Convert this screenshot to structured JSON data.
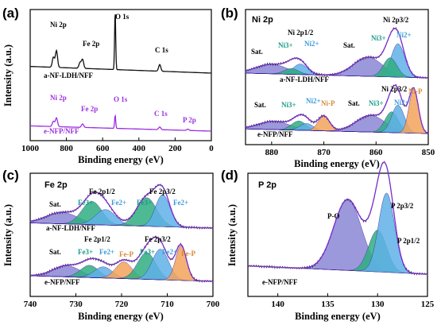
{
  "colors": {
    "black": "#111111",
    "purple": "#9b2fe0",
    "envelope": "#3c1e96",
    "Ni3_fill": "#8a86d6",
    "Ni2_fill": "#5fb0e8",
    "NiP_fill": "#f3a35a",
    "sat_fill": "#8a86d6",
    "green_fill": "#2fae80",
    "Ni3_text": "#1a9a8a",
    "Ni2_text": "#3a9ad8",
    "NiP_text": "#d88a3a",
    "Fe3_text": "#1a9a8a",
    "Fe2_text": "#3a9ad8",
    "FeP_text": "#d88a3a",
    "label_purple": "#7a2fd0"
  },
  "chart_data": [
    {
      "panel": "(a)",
      "type": "line",
      "xlabel": "Binding energy (eV)",
      "ylabel": "Intensity (a.u.)",
      "xlim": [
        1000,
        0
      ],
      "xticks": [
        1000,
        800,
        600,
        400,
        200,
        0
      ],
      "series": [
        {
          "name": "a-NF-LDH/NFF",
          "color": "black",
          "offset": 1.0,
          "peaks": [
            {
              "x": 855,
              "h": 0.3
            },
            {
              "x": 872,
              "h": 0.18
            },
            {
              "x": 711,
              "h": 0.16
            },
            {
              "x": 725,
              "h": 0.1
            },
            {
              "x": 531,
              "h": 1.05
            },
            {
              "x": 285,
              "h": 0.12
            }
          ]
        },
        {
          "name": "e-NFP/NFF",
          "color": "purple",
          "offset": 0.0,
          "peaks": [
            {
              "x": 855,
              "h": 0.2
            },
            {
              "x": 872,
              "h": 0.12
            },
            {
              "x": 711,
              "h": 0.08
            },
            {
              "x": 531,
              "h": 0.3
            },
            {
              "x": 285,
              "h": 0.06
            },
            {
              "x": 130,
              "h": 0.03
            }
          ]
        }
      ],
      "annotations": [
        {
          "text": "Ni 2p",
          "color": "black"
        },
        {
          "text": "Fe 2p",
          "color": "black"
        },
        {
          "text": "O 1s",
          "color": "black"
        },
        {
          "text": "C 1s",
          "color": "black"
        },
        {
          "text": "Ni 2p",
          "color": "purple"
        },
        {
          "text": "Fe 2p",
          "color": "purple"
        },
        {
          "text": "O 1s",
          "color": "purple"
        },
        {
          "text": "C 1s",
          "color": "purple"
        },
        {
          "text": "P 2p",
          "color": "purple"
        }
      ]
    },
    {
      "panel": "(b)",
      "title": "Ni 2p",
      "type": "line",
      "xlabel": "Binding energy (eV)",
      "ylabel": "",
      "xlim": [
        885,
        850
      ],
      "xticks": [
        880,
        870,
        860,
        850
      ],
      "series": [
        {
          "name": "a-NF-LDH/NFF",
          "offset": 1.0,
          "components": [
            {
              "label": "Sat.",
              "x": 880,
              "h": 0.2,
              "w": 3.0,
              "fill": "sat_fill"
            },
            {
              "label": "Ni 2p1/2",
              "x": 874.5,
              "h": 0.22,
              "w": 1.4,
              "fill": "Ni2_fill"
            },
            {
              "label": "Ni3+",
              "x": 876.2,
              "h": 0.12,
              "w": 1.4,
              "fill": "green_fill"
            },
            {
              "label": "Sat.",
              "x": 861.5,
              "h": 0.4,
              "w": 2.8,
              "fill": "sat_fill"
            },
            {
              "label": "Ni 2p3/2",
              "x": 855.8,
              "h": 0.7,
              "w": 1.3,
              "fill": "Ni2_fill"
            },
            {
              "label": "Ni3+",
              "x": 857.3,
              "h": 0.4,
              "w": 1.3,
              "fill": "green_fill"
            }
          ]
        },
        {
          "name": "e-NFP/NFF",
          "offset": 0.0,
          "components": [
            {
              "label": "Sat.",
              "x": 879.5,
              "h": 0.18,
              "w": 3.0,
              "fill": "sat_fill"
            },
            {
              "label": "Ni3+",
              "x": 874.8,
              "h": 0.2,
              "w": 1.4,
              "fill": "green_fill"
            },
            {
              "label": "Ni2+",
              "x": 873.3,
              "h": 0.15,
              "w": 1.3,
              "fill": "Ni2_fill"
            },
            {
              "label": "Ni-P",
              "x": 870.0,
              "h": 0.32,
              "w": 1.1,
              "fill": "NiP_fill"
            },
            {
              "label": "Sat.",
              "x": 861.0,
              "h": 0.36,
              "w": 2.8,
              "fill": "sat_fill"
            },
            {
              "label": "Ni3+",
              "x": 857.0,
              "h": 0.45,
              "w": 1.3,
              "fill": "green_fill"
            },
            {
              "label": "Ni2+",
              "x": 855.8,
              "h": 0.6,
              "w": 1.2,
              "fill": "Ni2_fill"
            },
            {
              "label": "Ni-P",
              "x": 852.8,
              "h": 0.95,
              "w": 0.9,
              "fill": "NiP_fill"
            }
          ]
        }
      ],
      "annotations": [
        {
          "text": "Sat.",
          "color": "black"
        },
        {
          "text": "Ni 2p1/2",
          "color": "black"
        },
        {
          "text": "Ni3+",
          "color": "Ni3_text"
        },
        {
          "text": "Ni2+",
          "color": "Ni2_text"
        },
        {
          "text": "Sat.",
          "color": "black"
        },
        {
          "text": "Ni 2p3/2",
          "color": "black"
        },
        {
          "text": "Ni3+",
          "color": "Ni3_text"
        },
        {
          "text": "Ni2+",
          "color": "Ni2_text"
        },
        {
          "text": "a-NF-LDH/NFF",
          "color": "black"
        },
        {
          "text": "Sat.",
          "color": "black"
        },
        {
          "text": "Ni3+",
          "color": "Ni3_text"
        },
        {
          "text": "Ni2+",
          "color": "Ni2_text"
        },
        {
          "text": "Ni-P",
          "color": "NiP_text"
        },
        {
          "text": "Sat.",
          "color": "black"
        },
        {
          "text": "Ni 2p3/2",
          "color": "black"
        },
        {
          "text": "Ni3+",
          "color": "Ni3_text"
        },
        {
          "text": "Ni2+",
          "color": "Ni2_text"
        },
        {
          "text": "Ni-P",
          "color": "NiP_text"
        },
        {
          "text": "e-NFP/NFF",
          "color": "black"
        }
      ]
    },
    {
      "panel": "(c)",
      "title": "Fe 2p",
      "type": "line",
      "xlabel": "Binding energy (eV)",
      "ylabel": "Intensity (a.u.)",
      "xlim": [
        740,
        700
      ],
      "xticks": [
        740,
        730,
        720,
        710,
        700
      ],
      "series": [
        {
          "name": "a-NF-LDH/NFF",
          "offset": 1.0,
          "components": [
            {
              "label": "Sat.",
              "x": 733,
              "h": 0.22,
              "w": 3.5,
              "fill": "sat_fill"
            },
            {
              "label": "Fe3+",
              "x": 726.5,
              "h": 0.45,
              "w": 2.2,
              "fill": "green_fill"
            },
            {
              "label": "Fe2+",
              "x": 723.5,
              "h": 0.3,
              "w": 2.2,
              "fill": "Ni2_fill"
            },
            {
              "label": "Fe3+",
              "x": 714.5,
              "h": 0.55,
              "w": 2.2,
              "fill": "green_fill"
            },
            {
              "label": "Fe2+",
              "x": 711.0,
              "h": 0.62,
              "w": 1.6,
              "fill": "Ni2_fill"
            }
          ]
        },
        {
          "name": "e-NFP/NFF",
          "offset": 0.0,
          "components": [
            {
              "label": "Sat.",
              "x": 732,
              "h": 0.2,
              "w": 3.0,
              "fill": "sat_fill"
            },
            {
              "label": "Fe3+",
              "x": 727,
              "h": 0.22,
              "w": 2.0,
              "fill": "green_fill"
            },
            {
              "label": "Fe2+",
              "x": 724,
              "h": 0.2,
              "w": 2.0,
              "fill": "Ni2_fill"
            },
            {
              "label": "Fe-P",
              "x": 719.5,
              "h": 0.3,
              "w": 1.8,
              "fill": "NiP_fill"
            },
            {
              "label": "Fe3+",
              "x": 714.5,
              "h": 0.48,
              "w": 2.0,
              "fill": "green_fill"
            },
            {
              "label": "Fe2+",
              "x": 711.5,
              "h": 0.55,
              "w": 1.8,
              "fill": "Ni2_fill"
            },
            {
              "label": "Fe-P",
              "x": 707.0,
              "h": 0.62,
              "w": 1.2,
              "fill": "NiP_fill"
            }
          ]
        }
      ],
      "annotations": [
        {
          "text": "Sat.",
          "color": "black"
        },
        {
          "text": "Fe 2p1/2",
          "color": "black"
        },
        {
          "text": "Fe3+",
          "color": "Fe3_text"
        },
        {
          "text": "Fe2+",
          "color": "Fe2_text"
        },
        {
          "text": "Fe 2p3/2",
          "color": "black"
        },
        {
          "text": "Fe3+",
          "color": "Fe3_text"
        },
        {
          "text": "Fe2+",
          "color": "Fe2_text"
        },
        {
          "text": "a-NF-LDH/NFF",
          "color": "black"
        },
        {
          "text": "Sat.",
          "color": "black"
        },
        {
          "text": "Fe 2p1/2",
          "color": "black"
        },
        {
          "text": "Fe3+",
          "color": "Fe3_text"
        },
        {
          "text": "Fe2+",
          "color": "Fe2_text"
        },
        {
          "text": "Fe-P",
          "color": "FeP_text"
        },
        {
          "text": "Fe 2p3/2",
          "color": "black"
        },
        {
          "text": "Fe3+",
          "color": "Fe3_text"
        },
        {
          "text": "Fe2+",
          "color": "Fe2_text"
        },
        {
          "text": "Fe-P",
          "color": "FeP_text"
        },
        {
          "text": "e-NFP/NFF",
          "color": "black"
        }
      ]
    },
    {
      "panel": "(d)",
      "title": "P 2p",
      "type": "line",
      "xlabel": "Binding energy (eV)",
      "ylabel": "Intensity (a.u.)",
      "xlim": [
        143,
        125
      ],
      "xticks": [
        140,
        135,
        130,
        125
      ],
      "series": [
        {
          "name": "e-NFP/NFF",
          "offset": 0.0,
          "components": [
            {
              "label": "P-O",
              "x": 133.0,
              "h": 0.85,
              "w": 1.4,
              "fill": "sat_fill"
            },
            {
              "label": "P 2p1/2",
              "x": 130.0,
              "h": 0.5,
              "w": 0.9,
              "fill": "green_fill"
            },
            {
              "label": "P 2p3/2",
              "x": 129.1,
              "h": 0.95,
              "w": 0.8,
              "fill": "Ni2_fill"
            }
          ]
        }
      ],
      "annotations": [
        {
          "text": "P-O",
          "color": "black"
        },
        {
          "text": "P 2p3/2",
          "color": "black"
        },
        {
          "text": "P 2p1/2",
          "color": "black"
        },
        {
          "text": "e-NFP/NFF",
          "color": "black"
        }
      ]
    }
  ]
}
